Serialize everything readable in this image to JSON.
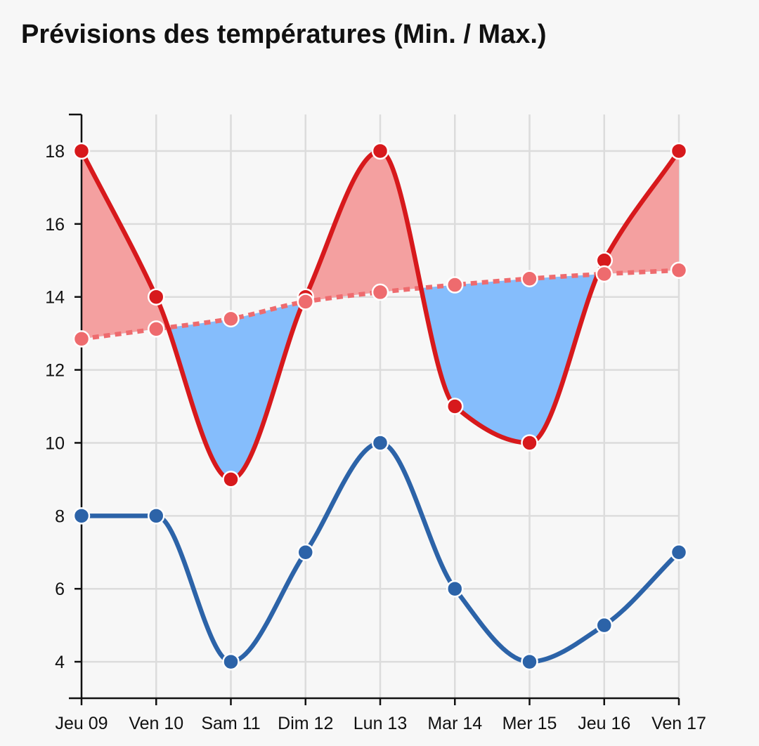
{
  "chart_data": {
    "type": "line",
    "title": "Prévisions des températures (Min. / Max.)",
    "categories": [
      "Jeu 09",
      "Ven 10",
      "Sam 11",
      "Dim 12",
      "Lun 13",
      "Mar 14",
      "Mer 15",
      "Jeu 16",
      "Ven 17"
    ],
    "series": [
      {
        "key": "max",
        "values": [
          18,
          14,
          9,
          14,
          18,
          11,
          10,
          15,
          18
        ],
        "color": "#d7191c",
        "style": "solid"
      },
      {
        "key": "normal",
        "values": [
          12.85,
          13.12,
          13.4,
          13.87,
          14.13,
          14.33,
          14.5,
          14.63,
          14.73
        ],
        "color": "#ee6b6e",
        "style": "dotted"
      },
      {
        "key": "min",
        "values": [
          8,
          8,
          4,
          7,
          10,
          6,
          4,
          5,
          7
        ],
        "color": "#2c63a8",
        "style": "solid"
      }
    ],
    "area_colors": {
      "above": "#f4a0a0",
      "below": "#85bdfc"
    },
    "yticks": [
      4,
      6,
      8,
      10,
      12,
      14,
      16,
      18
    ],
    "ylim": [
      3,
      19
    ],
    "grid": true
  }
}
